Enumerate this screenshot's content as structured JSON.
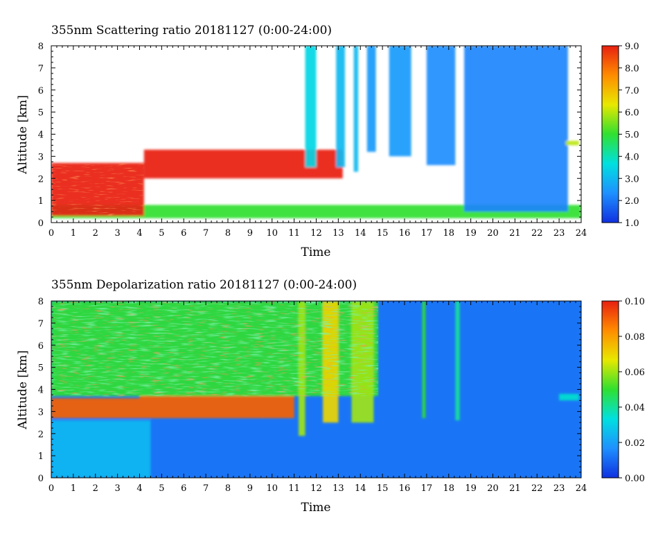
{
  "chart_data": [
    {
      "type": "heatmap",
      "title": "355nm Scattering ratio  20181127 (0:00-24:00)",
      "xlabel": "Time",
      "ylabel": "Altitude [km]",
      "xlim": [
        0,
        24
      ],
      "ylim": [
        0,
        8
      ],
      "x_ticks": [
        "0",
        "1",
        "2",
        "3",
        "4",
        "5",
        "6",
        "7",
        "8",
        "9",
        "10",
        "11",
        "12",
        "13",
        "14",
        "15",
        "16",
        "17",
        "18",
        "19",
        "20",
        "21",
        "22",
        "23",
        "24"
      ],
      "y_ticks": [
        "0",
        "1",
        "2",
        "3",
        "4",
        "5",
        "6",
        "7",
        "8"
      ],
      "colorbar": {
        "range": [
          1.0,
          9.0
        ],
        "ticks": [
          "1.0",
          "2.0",
          "3.0",
          "4.0",
          "5.0",
          "6.0",
          "7.0",
          "8.0",
          "9.0"
        ],
        "colors": [
          "#1030e0",
          "#1e90ff",
          "#00e0e0",
          "#30e030",
          "#e8e800",
          "#ff8c00",
          "#e82010"
        ]
      },
      "features": [
        {
          "kind": "boundary_layer",
          "x": [
            0,
            24
          ],
          "y": [
            0.2,
            0.8
          ],
          "value": 5.0
        },
        {
          "kind": "cloud",
          "x": [
            0,
            4.2
          ],
          "y": [
            0.3,
            2.7
          ],
          "value": 9.0
        },
        {
          "kind": "cloud",
          "x": [
            4.2,
            13.2
          ],
          "y": [
            2.0,
            3.3
          ],
          "value": 9.0
        },
        {
          "kind": "cloud_column",
          "x": [
            11.5,
            12.0
          ],
          "y": [
            2.5,
            8.0
          ],
          "value": 3.5
        },
        {
          "kind": "cloud_column",
          "x": [
            12.9,
            13.3
          ],
          "y": [
            2.5,
            8.0
          ],
          "value": 3.0
        },
        {
          "kind": "cloud_column",
          "x": [
            13.7,
            13.9
          ],
          "y": [
            2.3,
            8.0
          ],
          "value": 3.0
        },
        {
          "kind": "cloud_column",
          "x": [
            14.3,
            14.7
          ],
          "y": [
            3.2,
            8.0
          ],
          "value": 2.5
        },
        {
          "kind": "cloud_column",
          "x": [
            15.3,
            16.3
          ],
          "y": [
            3.0,
            8.0
          ],
          "value": 2.5
        },
        {
          "kind": "cloud_column",
          "x": [
            17.0,
            18.3
          ],
          "y": [
            2.6,
            8.0
          ],
          "value": 2.3
        },
        {
          "kind": "cloud_column",
          "x": [
            18.7,
            23.4
          ],
          "y": [
            0.5,
            8.0
          ],
          "value": 2.2
        },
        {
          "kind": "cloud",
          "x": [
            23.3,
            23.9
          ],
          "y": [
            3.5,
            3.7
          ],
          "value": 6.0
        }
      ]
    },
    {
      "type": "heatmap",
      "title": "355nm Depolarization ratio  20181127 (0:00-24:00)",
      "xlabel": "Time",
      "ylabel": "Altitude [km]",
      "xlim": [
        0,
        24
      ],
      "ylim": [
        0,
        8
      ],
      "x_ticks": [
        "0",
        "1",
        "2",
        "3",
        "4",
        "5",
        "6",
        "7",
        "8",
        "9",
        "10",
        "11",
        "12",
        "13",
        "14",
        "15",
        "16",
        "17",
        "18",
        "19",
        "20",
        "21",
        "22",
        "23",
        "24"
      ],
      "y_ticks": [
        "0",
        "1",
        "2",
        "3",
        "4",
        "5",
        "6",
        "7",
        "8"
      ],
      "colorbar": {
        "range": [
          0.0,
          0.1
        ],
        "ticks": [
          "0.00",
          "0.02",
          "0.04",
          "0.06",
          "0.08",
          "0.10"
        ],
        "colors": [
          "#1030e0",
          "#1e90ff",
          "#00e0e0",
          "#30e030",
          "#e8e800",
          "#ff8c00",
          "#e82010"
        ]
      },
      "features": [
        {
          "kind": "noisy_upper_layer",
          "x": [
            0,
            14.8
          ],
          "y": [
            3.7,
            8.0
          ],
          "value": 0.05
        },
        {
          "kind": "cloud_base",
          "x": [
            0,
            4.0
          ],
          "y": [
            2.7,
            3.6
          ],
          "value": 0.09
        },
        {
          "kind": "cloud_base",
          "x": [
            4.0,
            11.0
          ],
          "y": [
            2.7,
            3.7
          ],
          "value": 0.09
        },
        {
          "kind": "column",
          "x": [
            11.2,
            11.5
          ],
          "y": [
            1.9,
            8.0
          ],
          "value": 0.06
        },
        {
          "kind": "column",
          "x": [
            12.3,
            13.0
          ],
          "y": [
            2.5,
            8.0
          ],
          "value": 0.07
        },
        {
          "kind": "column",
          "x": [
            13.6,
            14.6
          ],
          "y": [
            2.5,
            8.0
          ],
          "value": 0.06
        },
        {
          "kind": "column",
          "x": [
            16.8,
            16.95
          ],
          "y": [
            2.7,
            8.0
          ],
          "value": 0.05
        },
        {
          "kind": "column",
          "x": [
            18.3,
            18.5
          ],
          "y": [
            2.6,
            8.0
          ],
          "value": 0.04
        },
        {
          "kind": "boundary_layer",
          "x": [
            0,
            4.5
          ],
          "y": [
            0.0,
            2.6
          ],
          "value": 0.025
        },
        {
          "kind": "layer",
          "x": [
            23.0,
            23.9
          ],
          "y": [
            3.5,
            3.8
          ],
          "value": 0.035
        }
      ]
    }
  ]
}
